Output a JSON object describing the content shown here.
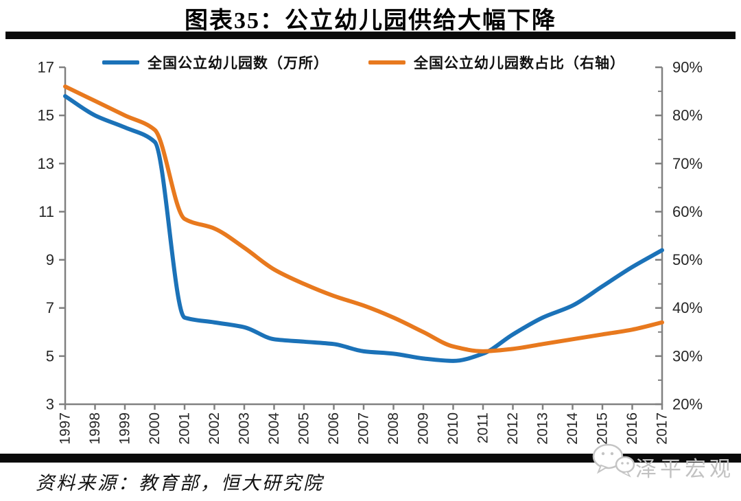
{
  "header": {
    "title": "图表35：公立幼儿园供给大幅下降"
  },
  "footer": {
    "source": "资料来源：教育部，恒大研究院",
    "watermark": "泽平宏观",
    "watermark_icon": "wechat-logo"
  },
  "chart_data": {
    "type": "line",
    "title": "公立幼儿园供给大幅下降",
    "categories": [
      "1997",
      "1998",
      "1999",
      "2000",
      "2001",
      "2002",
      "2003",
      "2004",
      "2005",
      "2006",
      "2007",
      "2008",
      "2009",
      "2010",
      "2011",
      "2012",
      "2013",
      "2014",
      "2015",
      "2016",
      "2017"
    ],
    "series": [
      {
        "name": "全国公立幼儿园数（万所）",
        "axis": "left",
        "color": "#1b72b8",
        "values": [
          15.8,
          15.0,
          14.5,
          13.9,
          6.6,
          6.4,
          6.2,
          5.7,
          5.6,
          5.5,
          5.2,
          5.1,
          4.9,
          4.8,
          5.1,
          5.9,
          6.6,
          7.1,
          7.9,
          8.7,
          9.4
        ]
      },
      {
        "name": "全国公立幼儿园数占比（右轴）",
        "axis": "right",
        "color": "#e8791e",
        "values": [
          86,
          83,
          80,
          77,
          58.5,
          56.5,
          52.5,
          48,
          45,
          42.5,
          40.5,
          38,
          35,
          32,
          31,
          31.5,
          32.5,
          33.5,
          34.5,
          35.5,
          37
        ]
      }
    ],
    "left_axis": {
      "min": 3,
      "max": 17,
      "major_step": 2,
      "tick_labels": [
        "3",
        "5",
        "7",
        "9",
        "11",
        "13",
        "15",
        "17"
      ]
    },
    "right_axis": {
      "min": 20,
      "max": 90,
      "major_step": 10,
      "minor_step": 5,
      "tick_labels": [
        "20%",
        "30%",
        "40%",
        "50%",
        "60%",
        "70%",
        "80%",
        "90%"
      ]
    },
    "legend_position": "top",
    "grid": false,
    "axis_color": "#808080",
    "line_width": 6
  }
}
